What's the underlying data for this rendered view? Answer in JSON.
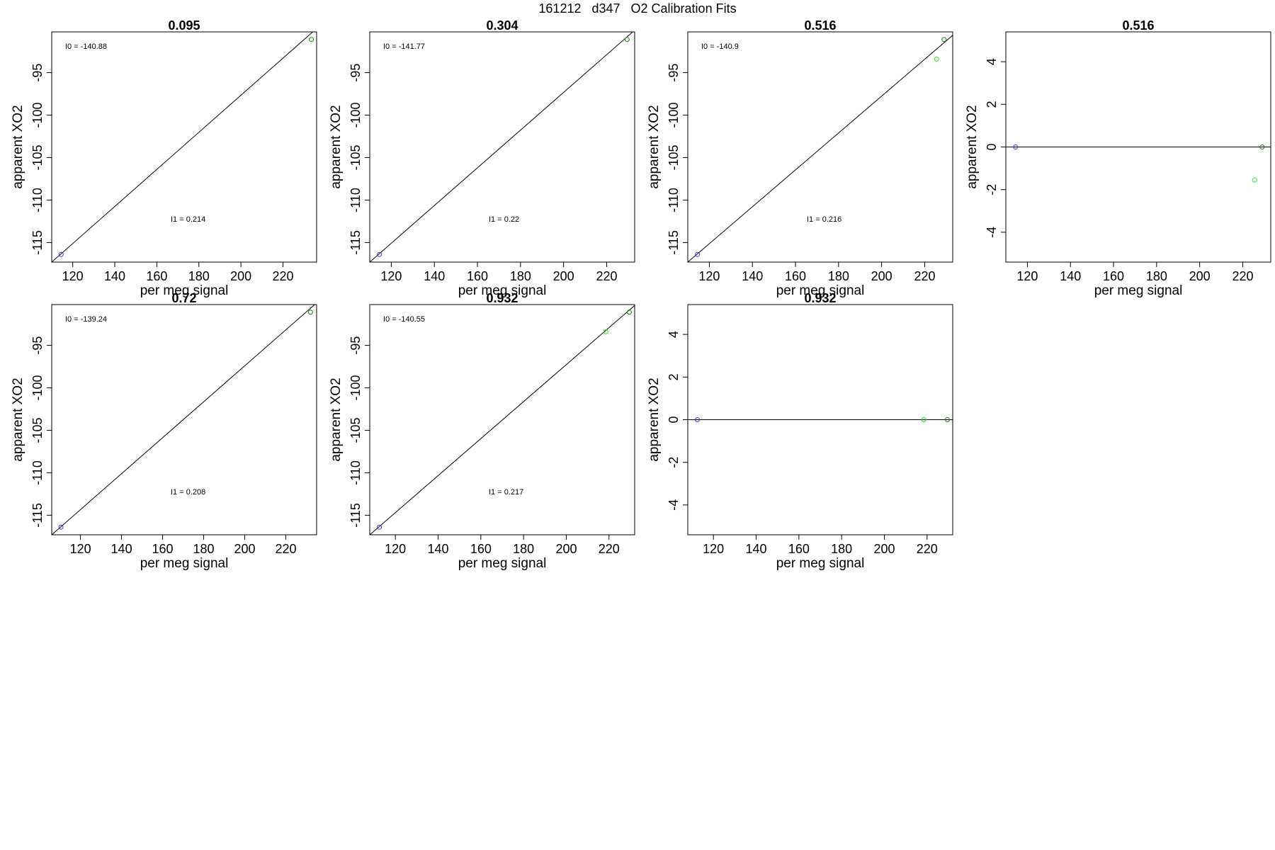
{
  "page": {
    "title": "161212   d347   O2 Calibration Fits"
  },
  "colors": {
    "frame": "#000000",
    "line": "#000000",
    "low_standard": "#3a3acc",
    "high_standard": "#1a7a1a",
    "sample": "#33dd33"
  },
  "chart_data": [
    {
      "type": "scatter",
      "title": "0.095",
      "xlabel": "per meg signal",
      "ylabel": "apparent XO2",
      "xlim": [
        110,
        236
      ],
      "ylim": [
        -117.3,
        -90.2
      ],
      "x_ticks": [
        120,
        140,
        160,
        180,
        200,
        220
      ],
      "y_ticks": [
        -95,
        -100,
        -105,
        -110,
        -115
      ],
      "fit_line": {
        "x": [
          110,
          236
        ],
        "y": [
          -117.3,
          -89.8
        ]
      },
      "series": [
        {
          "color": "#3a3acc",
          "points": [
            {
              "x": 114.5,
              "y": -116.4
            }
          ]
        },
        {
          "color": "#1a7a1a",
          "points": [
            {
              "x": 233.5,
              "y": -91.1
            }
          ]
        }
      ],
      "annotations": [
        "I0 =  -140.88",
        "I1 =  0.214"
      ]
    },
    {
      "type": "scatter",
      "title": "0.304",
      "xlabel": "per meg signal",
      "ylabel": "apparent XO2",
      "xlim": [
        110,
        233
      ],
      "ylim": [
        -117.3,
        -90.2
      ],
      "x_ticks": [
        120,
        140,
        160,
        180,
        200,
        220
      ],
      "y_ticks": [
        -95,
        -100,
        -105,
        -110,
        -115
      ],
      "fit_line": {
        "x": [
          110,
          233
        ],
        "y": [
          -117.3,
          -90.0
        ]
      },
      "series": [
        {
          "color": "#3a3acc",
          "points": [
            {
              "x": 114.5,
              "y": -116.4
            }
          ]
        },
        {
          "color": "#1a7a1a",
          "points": [
            {
              "x": 229.5,
              "y": -91.1
            }
          ]
        }
      ],
      "annotations": [
        "I0 =  -141.77",
        "I1 =  0.22"
      ]
    },
    {
      "type": "scatter",
      "title": "0.516",
      "xlabel": "per meg signal",
      "ylabel": "apparent XO2",
      "xlim": [
        110,
        233
      ],
      "ylim": [
        -117.3,
        -90.2
      ],
      "x_ticks": [
        120,
        140,
        160,
        180,
        200,
        220
      ],
      "y_ticks": [
        -95,
        -100,
        -105,
        -110,
        -115
      ],
      "fit_line": {
        "x": [
          110,
          233
        ],
        "y": [
          -117.3,
          -90.6
        ]
      },
      "series": [
        {
          "color": "#3a3acc",
          "points": [
            {
              "x": 114.5,
              "y": -116.4
            }
          ]
        },
        {
          "color": "#33dd33",
          "points": [
            {
              "x": 225.5,
              "y": -93.4
            }
          ]
        },
        {
          "color": "#1a7a1a",
          "points": [
            {
              "x": 229.0,
              "y": -91.1
            }
          ]
        }
      ],
      "annotations": [
        "I0 =  -140.9",
        "I1 =  0.216"
      ]
    },
    {
      "type": "scatter",
      "title": "0.516",
      "xlabel": "per meg signal",
      "ylabel": "apparent XO2",
      "xlim": [
        110,
        233
      ],
      "ylim": [
        -5.4,
        5.4
      ],
      "x_ticks": [
        120,
        140,
        160,
        180,
        200,
        220
      ],
      "y_ticks": [
        4,
        2,
        0,
        -2,
        -4
      ],
      "fit_line": {
        "x": [
          110,
          233
        ],
        "y": [
          0,
          0
        ]
      },
      "series": [
        {
          "color": "#3a3acc",
          "points": [
            {
              "x": 114.5,
              "y": 0
            }
          ]
        },
        {
          "color": "#33dd33",
          "points": [
            {
              "x": 225.5,
              "y": -1.55
            }
          ]
        },
        {
          "color": "#1a7a1a",
          "points": [
            {
              "x": 229.0,
              "y": 0
            }
          ]
        }
      ],
      "annotations": []
    },
    {
      "type": "scatter",
      "title": "0.72",
      "xlabel": "per meg signal",
      "ylabel": "apparent XO2",
      "xlim": [
        106,
        235
      ],
      "ylim": [
        -117.3,
        -90.2
      ],
      "x_ticks": [
        120,
        140,
        160,
        180,
        200,
        220
      ],
      "y_ticks": [
        -95,
        -100,
        -105,
        -110,
        -115
      ],
      "fit_line": {
        "x": [
          106,
          235
        ],
        "y": [
          -117.3,
          -90.0
        ]
      },
      "series": [
        {
          "color": "#3a3acc",
          "points": [
            {
              "x": 110.5,
              "y": -116.4
            }
          ]
        },
        {
          "color": "#1a7a1a",
          "points": [
            {
              "x": 232.0,
              "y": -91.1
            }
          ]
        }
      ],
      "annotations": [
        "I0 =  -139.24",
        "I1 =  0.208"
      ]
    },
    {
      "type": "scatter",
      "title": "0.932",
      "xlabel": "per meg signal",
      "ylabel": "apparent XO2",
      "xlim": [
        108,
        232
      ],
      "ylim": [
        -117.3,
        -90.2
      ],
      "x_ticks": [
        120,
        140,
        160,
        180,
        200,
        220
      ],
      "y_ticks": [
        -95,
        -100,
        -105,
        -110,
        -115
      ],
      "fit_line": {
        "x": [
          108,
          232
        ],
        "y": [
          -117.3,
          -90.3
        ]
      },
      "series": [
        {
          "color": "#3a3acc",
          "points": [
            {
              "x": 112.5,
              "y": -116.4
            }
          ]
        },
        {
          "color": "#33dd33",
          "points": [
            {
              "x": 218.5,
              "y": -93.4
            }
          ]
        },
        {
          "color": "#1a7a1a",
          "points": [
            {
              "x": 229.5,
              "y": -91.1
            }
          ]
        }
      ],
      "annotations": [
        "I0 =  -140.55",
        "I1 =  0.217"
      ]
    },
    {
      "type": "scatter",
      "title": "0.932",
      "xlabel": "per meg signal",
      "ylabel": "apparent XO2",
      "xlim": [
        108,
        232
      ],
      "ylim": [
        -5.4,
        5.4
      ],
      "x_ticks": [
        120,
        140,
        160,
        180,
        200,
        220
      ],
      "y_ticks": [
        4,
        2,
        0,
        -2,
        -4
      ],
      "fit_line": {
        "x": [
          108,
          232
        ],
        "y": [
          0,
          0
        ]
      },
      "series": [
        {
          "color": "#3a3acc",
          "points": [
            {
              "x": 112.5,
              "y": 0
            }
          ]
        },
        {
          "color": "#33dd33",
          "points": [
            {
              "x": 218.5,
              "y": 0
            }
          ]
        },
        {
          "color": "#1a7a1a",
          "points": [
            {
              "x": 229.5,
              "y": 0
            }
          ]
        }
      ],
      "annotations": []
    }
  ]
}
